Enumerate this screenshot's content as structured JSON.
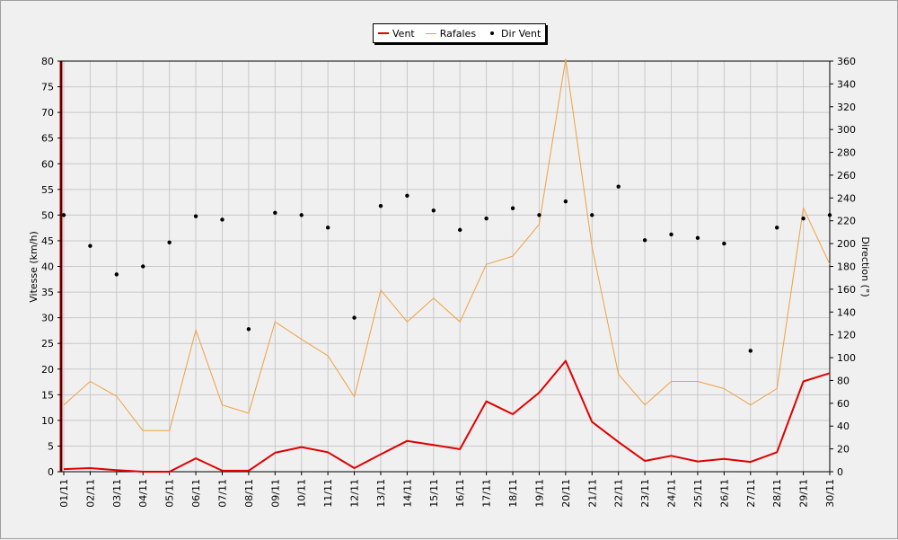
{
  "chart_data": {
    "type": "line",
    "categories": [
      "01/11",
      "02/11",
      "03/11",
      "04/11",
      "05/11",
      "06/11",
      "07/11",
      "08/11",
      "09/11",
      "10/11",
      "11/11",
      "12/11",
      "13/11",
      "14/11",
      "15/11",
      "16/11",
      "17/11",
      "18/11",
      "19/11",
      "20/11",
      "21/11",
      "22/11",
      "23/11",
      "24/11",
      "25/11",
      "26/11",
      "27/11",
      "28/11",
      "29/11",
      "30/11"
    ],
    "series": [
      {
        "name": "Vent",
        "color": "#e00000",
        "axis": "left",
        "kind": "line",
        "values": [
          0.5,
          0.7,
          0.3,
          0,
          0,
          2.6,
          0.2,
          0.2,
          3.7,
          4.8,
          3.8,
          0.7,
          3.4,
          6,
          5.2,
          4.4,
          13.7,
          11.2,
          15.4,
          21.6,
          9.7,
          5.8,
          2.1,
          3.1,
          2,
          2.5,
          1.9,
          3.8,
          17.6,
          19.2
        ]
      },
      {
        "name": "Rafales",
        "color": "#f0a040",
        "axis": "left",
        "kind": "line",
        "values": [
          13,
          17.6,
          14.7,
          8,
          8,
          27.6,
          13,
          11.4,
          29.2,
          25.8,
          22.6,
          14.6,
          35.4,
          29.2,
          33.8,
          29.2,
          40.4,
          42,
          48.2,
          80.4,
          43.8,
          19,
          13,
          17.6,
          17.6,
          16.2,
          13,
          16.2,
          51.4,
          40.4
        ]
      },
      {
        "name": "Dir Vent",
        "color": "#000000",
        "axis": "right",
        "kind": "scatter",
        "values": [
          225,
          198,
          173,
          180,
          201,
          224,
          221,
          125,
          227,
          225,
          214,
          135,
          233,
          242,
          229,
          212,
          222,
          231,
          225,
          237,
          225,
          250,
          203,
          208,
          205,
          200,
          106,
          214,
          222,
          225
        ]
      }
    ],
    "y_left": {
      "label": "Vitesse (km/h)",
      "min": 0,
      "max": 80,
      "step": 5,
      "ticks": [
        "0",
        "5",
        "10",
        "15",
        "20",
        "25",
        "30",
        "35",
        "40",
        "45",
        "50",
        "55",
        "60",
        "65",
        "70",
        "75",
        "80"
      ]
    },
    "y_right": {
      "label": "Direction (°)",
      "min": 0,
      "max": 360,
      "step": 20,
      "ticks": [
        "0",
        "20",
        "40",
        "60",
        "80",
        "100",
        "120",
        "140",
        "160",
        "180",
        "200",
        "220",
        "240",
        "260",
        "280",
        "300",
        "320",
        "340",
        "360"
      ]
    },
    "grid": true,
    "legend_position": "top-center"
  }
}
